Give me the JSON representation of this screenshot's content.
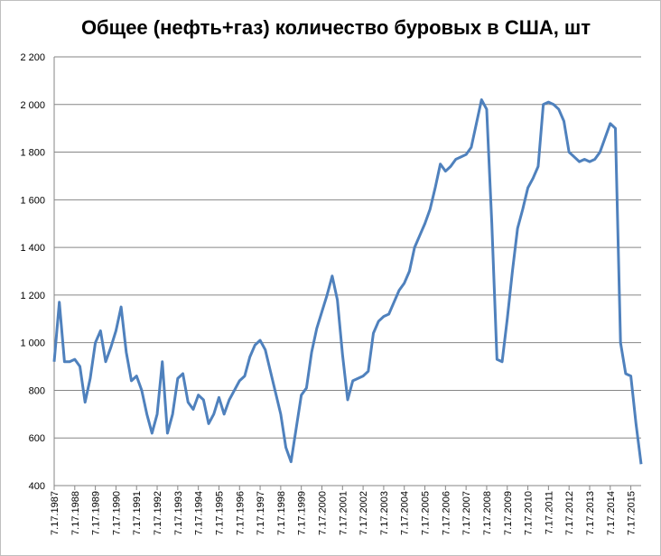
{
  "chart_data": {
    "type": "line",
    "title": "Общее (нефть+газ) количество буровых в США, шт",
    "categories": [
      "7.17.1987",
      null,
      null,
      null,
      "7.17.1988",
      null,
      null,
      null,
      "7.17.1989",
      null,
      null,
      null,
      "7.17.1990",
      null,
      null,
      null,
      "7.17.1991",
      null,
      null,
      null,
      "7.17.1992",
      null,
      null,
      null,
      "7.17.1993",
      null,
      null,
      null,
      "7.17.1994",
      null,
      null,
      null,
      "7.17.1995",
      null,
      null,
      null,
      "7.17.1996",
      null,
      null,
      null,
      "7.17.1997",
      null,
      null,
      null,
      "7.17.1998",
      null,
      null,
      null,
      "7.17.1999",
      null,
      null,
      null,
      "7.17.2000",
      null,
      null,
      null,
      "7.17.2001",
      null,
      null,
      null,
      "7.17.2002",
      null,
      null,
      null,
      "7.17.2003",
      null,
      null,
      null,
      "7.17.2004",
      null,
      null,
      null,
      "7.17.2005",
      null,
      null,
      null,
      "7.17.2006",
      null,
      null,
      null,
      "7.17.2007",
      null,
      null,
      null,
      "7.17.2008",
      null,
      null,
      null,
      "7.17.2009",
      null,
      null,
      null,
      "7.17.2010",
      null,
      null,
      null,
      "7.17.2011",
      null,
      null,
      null,
      "7.17.2012",
      null,
      null,
      null,
      "7.17.2013",
      null,
      null,
      null,
      "7.17.2014",
      null,
      null,
      null,
      "7.17.2015",
      null,
      null
    ],
    "series": [
      {
        "color": "#4f81bd",
        "values": [
          920,
          1170,
          920,
          920,
          930,
          900,
          750,
          850,
          1000,
          1050,
          920,
          980,
          1050,
          1150,
          960,
          840,
          860,
          800,
          700,
          620,
          700,
          920,
          620,
          700,
          850,
          870,
          750,
          720,
          780,
          760,
          660,
          700,
          770,
          700,
          760,
          800,
          840,
          860,
          940,
          990,
          1010,
          970,
          880,
          790,
          700,
          560,
          500,
          640,
          780,
          810,
          960,
          1060,
          1130,
          1200,
          1280,
          1180,
          950,
          760,
          840,
          850,
          860,
          880,
          1040,
          1090,
          1110,
          1120,
          1170,
          1220,
          1250,
          1300,
          1400,
          1450,
          1500,
          1560,
          1650,
          1750,
          1720,
          1740,
          1770,
          1780,
          1790,
          1820,
          1920,
          2020,
          1980,
          1500,
          930,
          920,
          1100,
          1300,
          1480,
          1560,
          1650,
          1690,
          1740,
          2000,
          2010,
          2000,
          1980,
          1930,
          1800,
          1780,
          1760,
          1770,
          1760,
          1770,
          1800,
          1860,
          1920,
          1900,
          1000,
          870,
          860,
          660,
          490
        ]
      }
    ],
    "ylim": [
      400,
      2200
    ],
    "yticks": [
      400,
      600,
      800,
      {
        "value": 1000,
        "label": "1 000"
      },
      {
        "value": 1200,
        "label": "1 200"
      },
      {
        "value": 1400,
        "label": "1 400"
      },
      {
        "value": 1600,
        "label": "1 600"
      },
      {
        "value": 1800,
        "label": "1 800"
      },
      {
        "value": 2000,
        "label": "2 000"
      },
      {
        "value": 2200,
        "label": "2 200"
      }
    ],
    "grid": true
  }
}
